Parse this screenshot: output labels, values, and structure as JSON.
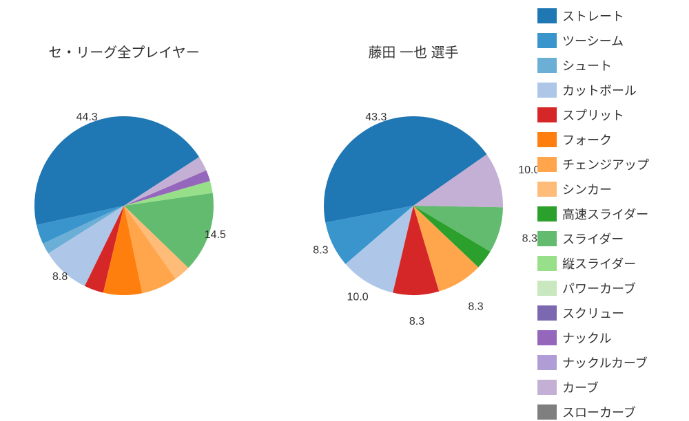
{
  "charts": [
    {
      "title": "セ・リーグ全プレイヤー",
      "type": "pie",
      "radius": 130,
      "start_angle_deg": 57,
      "slices": [
        {
          "value": 44.3,
          "label_text": "44.3",
          "color": "#1f77b4",
          "label_offset": 0.62
        },
        {
          "value": 3.5,
          "color": "#3a95cd"
        },
        {
          "value": 2.0,
          "color": "#6baed6"
        },
        {
          "value": 8.8,
          "label_text": "8.8",
          "color": "#aec7e8",
          "label_offset": 0.62
        },
        {
          "value": 3.5,
          "color": "#d62728"
        },
        {
          "value": 7.0,
          "color": "#ff7f0e"
        },
        {
          "value": 6.5,
          "color": "#ffa64d"
        },
        {
          "value": 3.0,
          "color": "#ffbb78"
        },
        {
          "value": 14.5,
          "label_text": "14.5",
          "color": "#62bb6e",
          "label_offset": 0.62
        },
        {
          "value": 2.2,
          "color": "#98df8a"
        },
        {
          "value": 2.0,
          "color": "#9467bd"
        },
        {
          "value": 2.7,
          "color": "#c5b0d5"
        }
      ]
    },
    {
      "title": "藤田 一也  選手",
      "type": "pie",
      "radius": 130,
      "start_angle_deg": 55,
      "slices": [
        {
          "value": 43.3,
          "label_text": "43.3",
          "color": "#1f77b4",
          "label_offset": 0.62
        },
        {
          "value": 8.3,
          "label_text": "8.3",
          "color": "#3a95cd",
          "label_offset": 0.7
        },
        {
          "value": 10.0,
          "label_text": "10.0",
          "color": "#aec7e8",
          "label_offset": 0.75
        },
        {
          "value": 8.3,
          "label_text": "8.3",
          "color": "#d62728",
          "label_offset": 0.85
        },
        {
          "value": 8.3,
          "label_text": "8.3",
          "color": "#ffa64d",
          "label_offset": 0.88
        },
        {
          "value": 3.5,
          "color": "#2ca02c"
        },
        {
          "value": 8.3,
          "label_text": "8.3",
          "color": "#62bb6e",
          "label_offset": 0.9
        },
        {
          "value": 10.0,
          "label_text": "10.0",
          "color": "#c5b0d5",
          "label_offset": 0.9
        }
      ]
    }
  ],
  "legend": {
    "items": [
      {
        "label": "ストレート",
        "color": "#1f77b4"
      },
      {
        "label": "ツーシーム",
        "color": "#3a95cd"
      },
      {
        "label": "シュート",
        "color": "#6baed6"
      },
      {
        "label": "カットボール",
        "color": "#aec7e8"
      },
      {
        "label": "スプリット",
        "color": "#d62728"
      },
      {
        "label": "フォーク",
        "color": "#ff7f0e"
      },
      {
        "label": "チェンジアップ",
        "color": "#ffa64d"
      },
      {
        "label": "シンカー",
        "color": "#ffbb78"
      },
      {
        "label": "高速スライダー",
        "color": "#2ca02c"
      },
      {
        "label": "スライダー",
        "color": "#62bb6e"
      },
      {
        "label": "縦スライダー",
        "color": "#98df8a"
      },
      {
        "label": "パワーカーブ",
        "color": "#c9e8c0"
      },
      {
        "label": "スクリュー",
        "color": "#7b68b0"
      },
      {
        "label": "ナックル",
        "color": "#9467bd"
      },
      {
        "label": "ナックルカーブ",
        "color": "#b09dd6"
      },
      {
        "label": "カーブ",
        "color": "#c5b0d5"
      },
      {
        "label": "スローカーブ",
        "color": "#7f7f7f"
      }
    ]
  },
  "style": {
    "background_color": "#ffffff",
    "title_fontsize": 20,
    "label_fontsize": 16,
    "legend_fontsize": 18
  }
}
